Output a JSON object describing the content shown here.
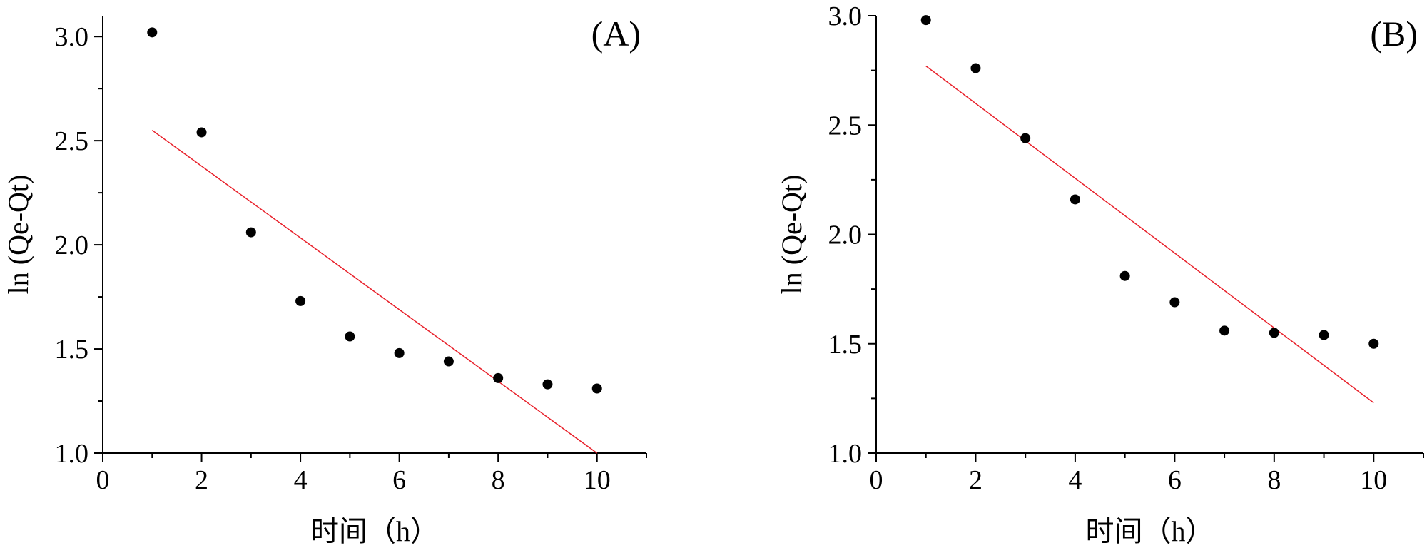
{
  "chart_data": [
    {
      "type": "scatter",
      "panel_label": "(A)",
      "xlabel": "时间（h）",
      "ylabel": "ln (Qe-Qt)",
      "xlim": [
        0,
        11
      ],
      "ylim": [
        1.0,
        3.1
      ],
      "xticks": [
        0,
        2,
        4,
        6,
        8,
        10
      ],
      "xtick_labels": [
        "0",
        "2",
        "4",
        "6",
        "8",
        "10"
      ],
      "yticks": [
        1.0,
        1.5,
        2.0,
        2.5,
        3.0
      ],
      "ytick_labels": [
        "1.0",
        "1.5",
        "2.0",
        "2.5",
        "3.0"
      ],
      "grid": false,
      "points": {
        "x": [
          1,
          2,
          3,
          4,
          5,
          6,
          7,
          8,
          9,
          10
        ],
        "y": [
          3.02,
          2.54,
          2.06,
          1.73,
          1.56,
          1.48,
          1.44,
          1.36,
          1.33,
          1.31
        ]
      },
      "fit_line": {
        "x": [
          1,
          10
        ],
        "y": [
          2.55,
          1.0
        ],
        "color": "#e8202a"
      },
      "point_color": "#000000"
    },
    {
      "type": "scatter",
      "panel_label": "(B)",
      "xlabel": "时间（h）",
      "ylabel": "ln (Qe-Qt)",
      "xlim": [
        0,
        11
      ],
      "ylim": [
        1.0,
        3.0
      ],
      "xticks": [
        0,
        2,
        4,
        6,
        8,
        10
      ],
      "xtick_labels": [
        "0",
        "2",
        "4",
        "6",
        "8",
        "10"
      ],
      "yticks": [
        1.0,
        1.5,
        2.0,
        2.5,
        3.0
      ],
      "ytick_labels": [
        "1.0",
        "1.5",
        "2.0",
        "2.5",
        "3.0"
      ],
      "grid": false,
      "points": {
        "x": [
          1,
          2,
          3,
          4,
          5,
          6,
          7,
          8,
          9,
          10
        ],
        "y": [
          2.98,
          2.76,
          2.44,
          2.16,
          1.81,
          1.69,
          1.56,
          1.55,
          1.54,
          1.5
        ]
      },
      "fit_line": {
        "x": [
          1,
          10
        ],
        "y": [
          2.77,
          1.23
        ],
        "color": "#e8202a"
      },
      "point_color": "#000000"
    }
  ]
}
